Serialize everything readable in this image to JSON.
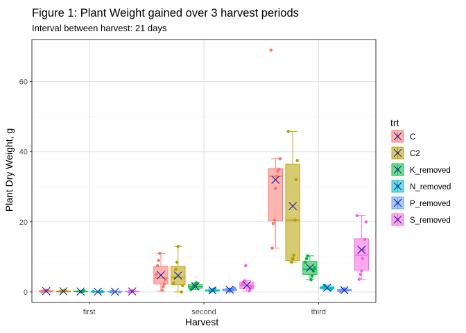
{
  "chart_data": {
    "type": "boxplot",
    "title": "Figure 1: Plant Weight gained over 3 harvest periods",
    "subtitle": "Interval between harvest: 21 days",
    "xlabel": "Harvest",
    "ylabel": "Plant Dry Weight, g",
    "categories": [
      "first",
      "second",
      "third"
    ],
    "ylim": [
      -3,
      72
    ],
    "yticks": [
      0,
      20,
      40,
      60
    ],
    "grid": true,
    "legend": {
      "title": "trt",
      "placement": "right"
    },
    "series": [
      {
        "name": "C",
        "color": "#F8766D",
        "boxes": [
          {
            "min": 0.0,
            "q1": 0.1,
            "median": 0.2,
            "q3": 0.35,
            "max": 0.5,
            "mean": 0.25
          },
          {
            "min": 0.3,
            "q1": 2.3,
            "median": 4.0,
            "q3": 7.3,
            "max": 11.0,
            "mean": 4.8
          },
          {
            "min": 12.5,
            "q1": 20.3,
            "median": 33.0,
            "q3": 35.2,
            "max": 38.0,
            "mean": 32.0
          }
        ],
        "points": [
          [
            0.1,
            0.2,
            0.3,
            0.4,
            0.5
          ],
          [
            0.5,
            1.5,
            2.3,
            3.5,
            5.0,
            7.5,
            9.0,
            11.0
          ],
          [
            12.5,
            19.5,
            20.5,
            29.5,
            33.0,
            34.5,
            35.0,
            38.0,
            69.0
          ]
        ]
      },
      {
        "name": "C2",
        "color": "#B79F00",
        "boxes": [
          {
            "min": 0.0,
            "q1": 0.05,
            "median": 0.15,
            "q3": 0.3,
            "max": 0.5,
            "mean": 0.2
          },
          {
            "min": 0.0,
            "q1": 2.0,
            "median": 4.2,
            "q3": 7.3,
            "max": 13.0,
            "mean": 4.7
          },
          {
            "min": 8.5,
            "q1": 9.0,
            "median": 20.5,
            "q3": 36.5,
            "max": 45.8,
            "mean": 24.5
          }
        ],
        "points": [
          [
            0.1,
            0.2,
            0.3,
            0.4
          ],
          [
            0.0,
            1.8,
            2.5,
            4.0,
            6.5,
            8.5,
            13.0
          ],
          [
            8.5,
            9.5,
            10.5,
            20.5,
            32.0,
            37.5,
            45.8
          ]
        ]
      },
      {
        "name": "K_removed",
        "color": "#00BA38",
        "boxes": [
          {
            "min": 0.0,
            "q1": 0.05,
            "median": 0.1,
            "q3": 0.2,
            "max": 0.35,
            "mean": 0.15
          },
          {
            "min": 0.7,
            "q1": 1.1,
            "median": 1.5,
            "q3": 2.1,
            "max": 2.6,
            "mean": 1.6
          },
          {
            "min": 3.5,
            "q1": 5.0,
            "median": 6.5,
            "q3": 8.7,
            "max": 10.3,
            "mean": 6.9
          }
        ],
        "points": [
          [
            0.05,
            0.1,
            0.2,
            0.3
          ],
          [
            0.7,
            1.0,
            1.4,
            1.8,
            2.2,
            2.6
          ],
          [
            3.5,
            4.5,
            6.0,
            7.0,
            8.5,
            9.5,
            10.3
          ]
        ]
      },
      {
        "name": "N_removed",
        "color": "#00BFC4",
        "boxes": [
          {
            "min": 0.0,
            "q1": 0.02,
            "median": 0.05,
            "q3": 0.1,
            "max": 0.2,
            "mean": 0.07
          },
          {
            "min": 0.1,
            "q1": 0.25,
            "median": 0.4,
            "q3": 0.6,
            "max": 0.9,
            "mean": 0.45
          },
          {
            "min": 0.6,
            "q1": 0.9,
            "median": 1.2,
            "q3": 1.5,
            "max": 1.9,
            "mean": 1.2
          }
        ],
        "points": [
          [
            0.02,
            0.05,
            0.1,
            0.15
          ],
          [
            0.1,
            0.3,
            0.5,
            0.7,
            0.9
          ],
          [
            0.6,
            0.9,
            1.2,
            1.5,
            1.9
          ]
        ]
      },
      {
        "name": "P_removed",
        "color": "#619CFF",
        "boxes": [
          {
            "min": 0.0,
            "q1": 0.02,
            "median": 0.05,
            "q3": 0.1,
            "max": 0.2,
            "mean": 0.06
          },
          {
            "min": 0.2,
            "q1": 0.4,
            "median": 0.6,
            "q3": 0.85,
            "max": 1.1,
            "mean": 0.65
          },
          {
            "min": 0.2,
            "q1": 0.35,
            "median": 0.5,
            "q3": 0.7,
            "max": 0.9,
            "mean": 0.5
          }
        ],
        "points": [
          [
            0.02,
            0.05,
            0.1,
            0.15
          ],
          [
            0.2,
            0.4,
            0.6,
            0.8,
            1.1
          ],
          [
            0.2,
            0.4,
            0.5,
            0.7,
            0.9
          ]
        ]
      },
      {
        "name": "S_removed",
        "color": "#F564E3",
        "boxes": [
          {
            "min": 0.0,
            "q1": 0.05,
            "median": 0.1,
            "q3": 0.2,
            "max": 0.35,
            "mean": 0.15
          },
          {
            "min": 0.3,
            "q1": 0.9,
            "median": 1.8,
            "q3": 2.8,
            "max": 3.2,
            "mean": 1.9
          },
          {
            "min": 3.6,
            "q1": 6.2,
            "median": 10.5,
            "q3": 15.2,
            "max": 21.8,
            "mean": 12.0
          }
        ],
        "points": [
          [
            0.05,
            0.1,
            0.2,
            0.3
          ],
          [
            0.3,
            0.8,
            1.5,
            2.2,
            2.8,
            3.2,
            7.5
          ],
          [
            3.6,
            5.0,
            6.0,
            9.5,
            12.0,
            15.0,
            20.0,
            21.8
          ]
        ]
      }
    ],
    "mean_marker": {
      "shape": "x",
      "color": "#1a1aa6"
    }
  }
}
